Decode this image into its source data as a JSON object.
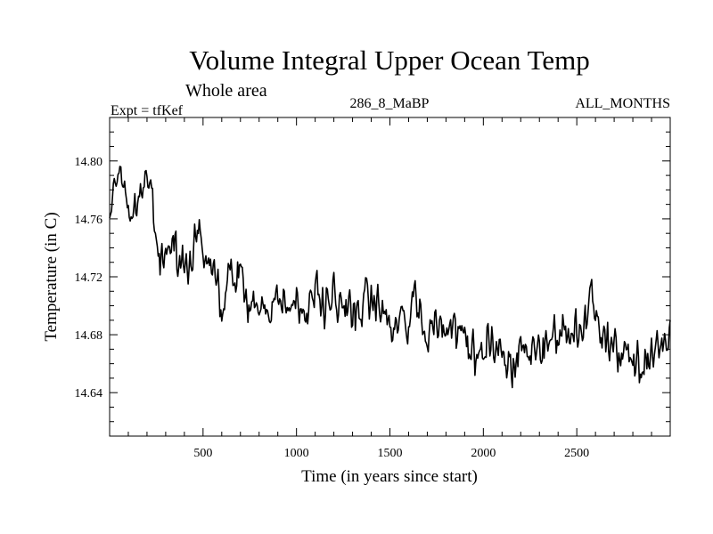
{
  "chart_data": {
    "type": "line",
    "title": "Volume Integral Upper Ocean Temp",
    "subtitle": "Whole area",
    "expt_label": "Expt = tfKef",
    "run_label": "286_8_MaBP",
    "months_label": "ALL_MONTHS",
    "xlabel": "Time (in years since start)",
    "ylabel": "Temperature (in C)",
    "xlim": [
      0,
      3000
    ],
    "ylim": [
      14.61,
      14.83
    ],
    "x_ticks": [
      "500",
      "1000",
      "1500",
      "2000",
      "2500"
    ],
    "y_ticks": [
      "14.64",
      "14.68",
      "14.72",
      "14.76",
      "14.80"
    ],
    "grid": false,
    "series": [
      {
        "color": "#000000",
        "x_step": 5,
        "anchor_x": [
          0,
          20,
          40,
          60,
          100,
          140,
          180,
          200,
          220,
          250,
          270,
          300,
          350,
          400,
          450,
          480,
          500,
          550,
          580,
          600,
          650,
          700,
          750,
          800,
          850,
          900,
          950,
          1000,
          1050,
          1100,
          1150,
          1200,
          1250,
          1300,
          1350,
          1370,
          1400,
          1450,
          1500,
          1550,
          1600,
          1650,
          1700,
          1750,
          1800,
          1850,
          1900,
          1950,
          2000,
          2050,
          2100,
          2150,
          2200,
          2250,
          2300,
          2350,
          2400,
          2450,
          2500,
          2550,
          2580,
          2600,
          2650,
          2700,
          2750,
          2800,
          2850,
          2900,
          2950,
          3000
        ],
        "anchor_y": [
          14.77,
          14.78,
          14.795,
          14.79,
          14.77,
          14.765,
          14.78,
          14.79,
          14.775,
          14.745,
          14.73,
          14.735,
          14.74,
          14.725,
          14.745,
          14.75,
          14.745,
          14.73,
          14.71,
          14.695,
          14.72,
          14.715,
          14.7,
          14.7,
          14.69,
          14.71,
          14.7,
          14.7,
          14.7,
          14.705,
          14.7,
          14.71,
          14.695,
          14.69,
          14.69,
          14.72,
          14.695,
          14.695,
          14.685,
          14.69,
          14.69,
          14.7,
          14.68,
          14.685,
          14.68,
          14.685,
          14.675,
          14.67,
          14.68,
          14.675,
          14.67,
          14.66,
          14.665,
          14.665,
          14.67,
          14.675,
          14.68,
          14.68,
          14.68,
          14.69,
          14.715,
          14.685,
          14.68,
          14.67,
          14.665,
          14.66,
          14.655,
          14.665,
          14.675,
          14.675
        ],
        "noise_amplitude": 0.016,
        "seed": 286
      }
    ]
  }
}
